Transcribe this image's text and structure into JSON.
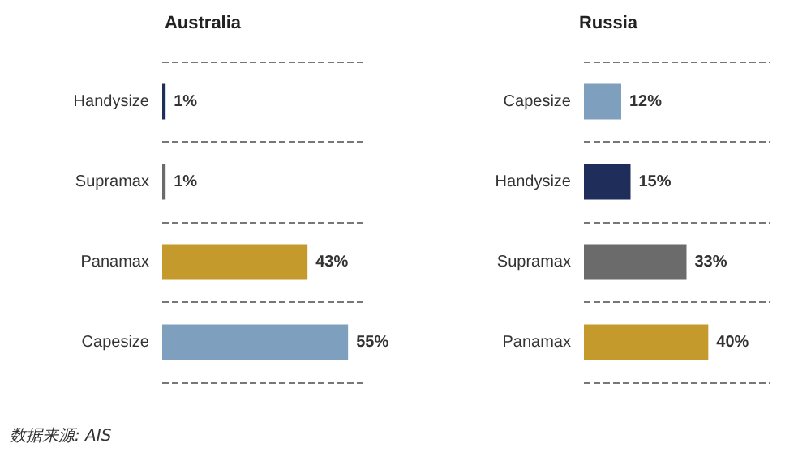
{
  "chart_data": [
    {
      "type": "bar",
      "orientation": "horizontal",
      "title": "Australia",
      "categories": [
        "Handysize",
        "Supramax",
        "Panamax",
        "Capesize"
      ],
      "values": [
        1,
        1,
        43,
        55
      ],
      "value_labels": [
        "1%",
        "1%",
        "43%",
        "55%"
      ],
      "colors": [
        "#1f2d5a",
        "#6b6b6b",
        "#c49a2c",
        "#7f9fbf"
      ],
      "xlim": [
        0,
        60
      ],
      "tick_labels": "y",
      "grid": "y",
      "annotations": [
        "数据来源: AIS"
      ]
    },
    {
      "type": "bar",
      "orientation": "horizontal",
      "title": "Russia",
      "categories": [
        "Capesize",
        "Handysize",
        "Supramax",
        "Panamax"
      ],
      "values": [
        12,
        15,
        33,
        40
      ],
      "value_labels": [
        "12%",
        "15%",
        "33%",
        "40%"
      ],
      "colors": [
        "#7f9fbf",
        "#1f2d5a",
        "#6b6b6b",
        "#c49a2c"
      ],
      "xlim": [
        0,
        60
      ],
      "tick_labels": "y",
      "grid": "y"
    }
  ]
}
